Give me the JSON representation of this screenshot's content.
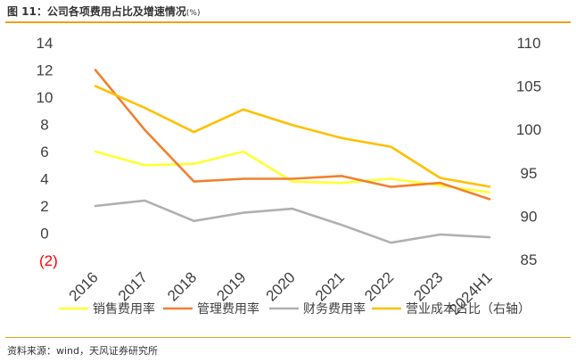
{
  "header": {
    "title": "图 11：公司各项费用占比及增速情况",
    "unit": "(%)"
  },
  "footer": {
    "source": "资料来源：wind，天风证券研究所"
  },
  "chart_data": {
    "type": "line",
    "categories": [
      "2016",
      "2017",
      "2018",
      "2019",
      "2020",
      "2021",
      "2022",
      "2023",
      "2024H1"
    ],
    "y_left": {
      "ticks": [
        14,
        12,
        10,
        8,
        6,
        4,
        2,
        0,
        "(2)"
      ],
      "range": [
        -2,
        14
      ]
    },
    "y_right": {
      "ticks": [
        110,
        105,
        100,
        95,
        90,
        85
      ],
      "range": [
        85,
        110
      ]
    },
    "grid": false,
    "legend_position": "bottom",
    "series": [
      {
        "name": "销售费用率",
        "axis": "left",
        "color": "#ffff33",
        "values": [
          6.0,
          5.0,
          5.1,
          6.0,
          3.8,
          3.7,
          4.0,
          3.5,
          3.0
        ]
      },
      {
        "name": "管理费用率",
        "axis": "left",
        "color": "#f08030",
        "values": [
          12.0,
          7.6,
          3.8,
          4.0,
          4.0,
          4.2,
          3.4,
          3.7,
          2.5
        ]
      },
      {
        "name": "财务费用率",
        "axis": "left",
        "color": "#b0b0b0",
        "values": [
          2.0,
          2.4,
          0.9,
          1.5,
          1.8,
          0.6,
          -0.7,
          -0.1,
          -0.3
        ]
      },
      {
        "name": "营业成本占比（右轴）",
        "axis": "right",
        "color": "#ffc000",
        "values": [
          105.0,
          102.5,
          99.7,
          102.3,
          100.5,
          99.0,
          98.0,
          94.4,
          93.4
        ]
      }
    ]
  }
}
